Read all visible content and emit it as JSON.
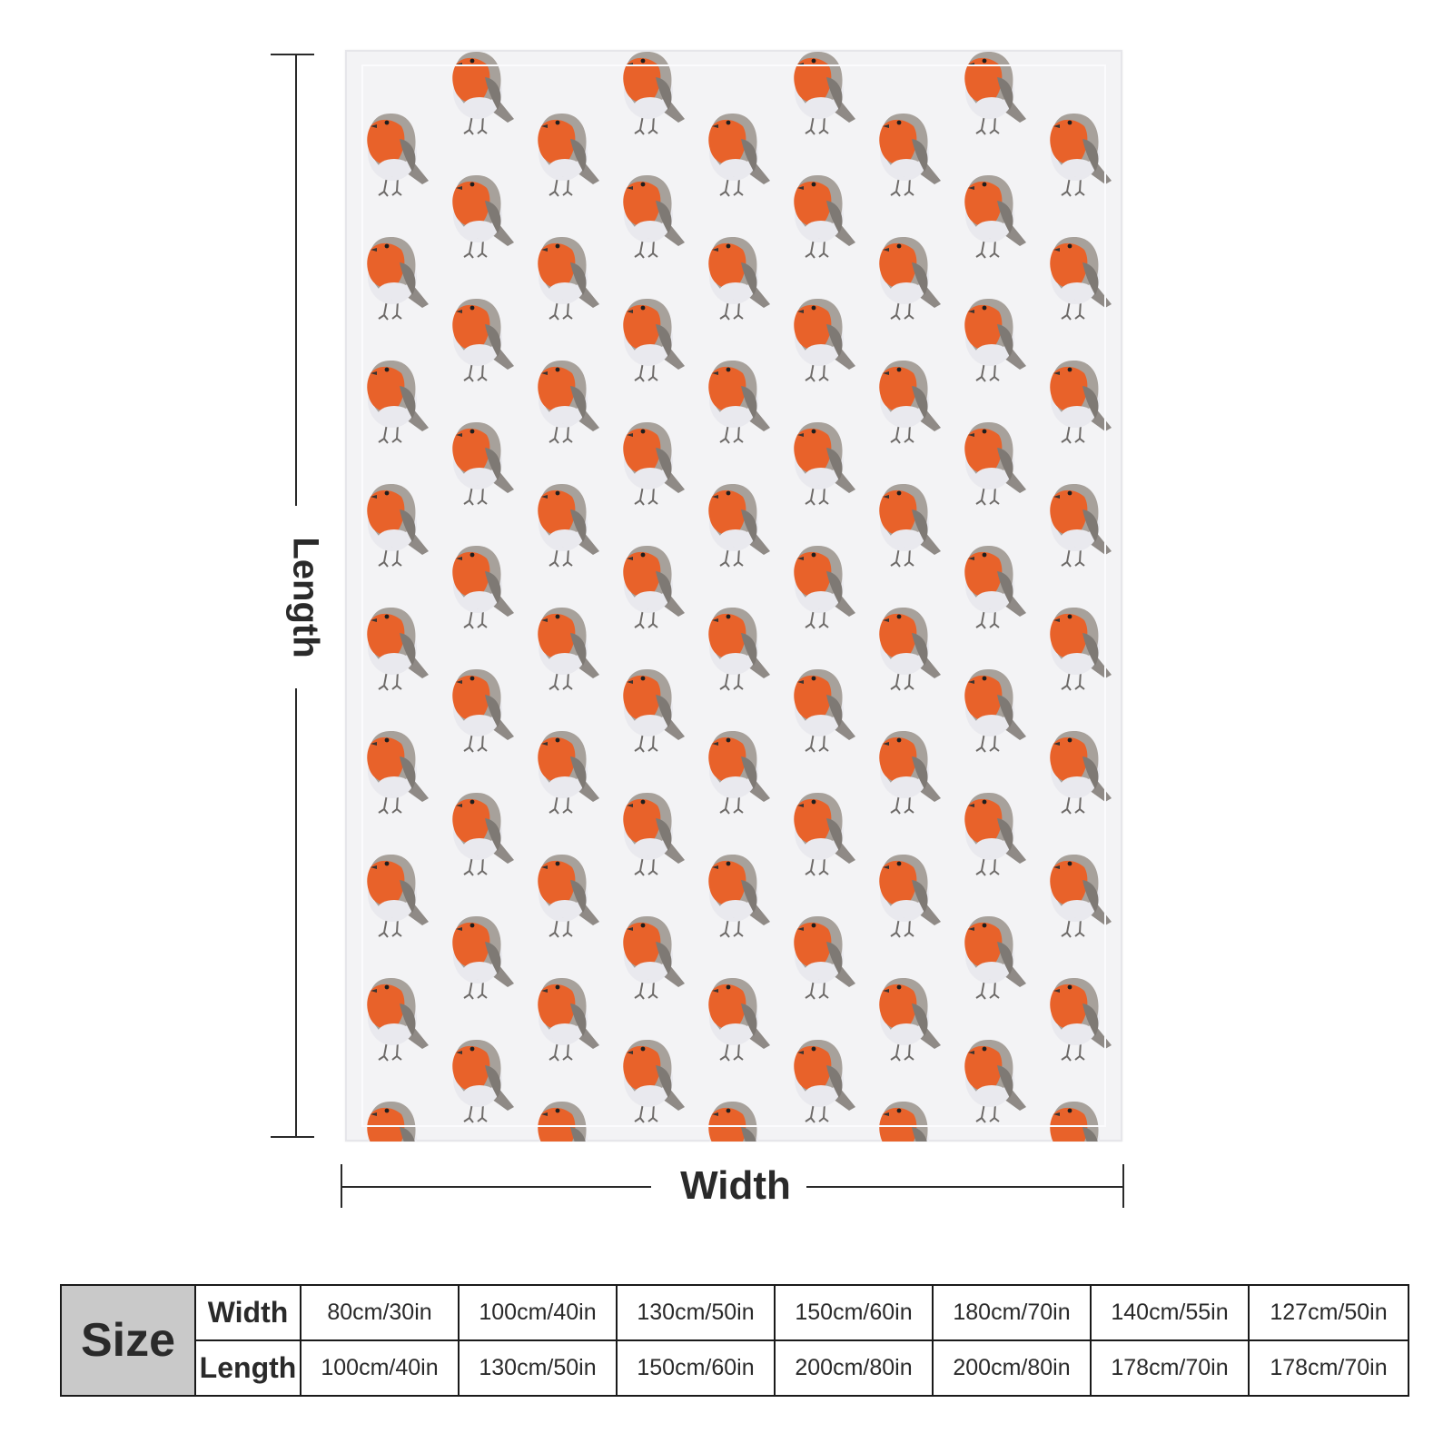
{
  "diagram": {
    "length_label": "Length",
    "width_label": "Width"
  },
  "blanket": {
    "pattern": "robin-pattern",
    "colors": {
      "background": "#f3f3f5",
      "robin_breast": "#e8622a",
      "robin_wing": "#8f8a86",
      "robin_belly": "#e9e9ee"
    }
  },
  "size_table": {
    "header": "Size",
    "rows": [
      {
        "label": "Width",
        "values": [
          "80cm/30in",
          "100cm/40in",
          "130cm/50in",
          "150cm/60in",
          "180cm/70in",
          "140cm/55in",
          "127cm/50in"
        ]
      },
      {
        "label": "Length",
        "values": [
          "100cm/40in",
          "130cm/50in",
          "150cm/60in",
          "200cm/80in",
          "200cm/80in",
          "178cm/70in",
          "178cm/70in"
        ]
      }
    ]
  }
}
